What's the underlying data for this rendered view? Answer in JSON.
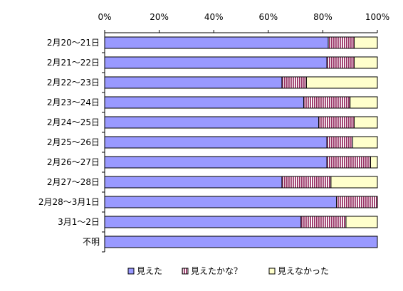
{
  "chart_data": {
    "type": "bar",
    "orientation": "horizontal",
    "stacked": "percent",
    "categories": [
      "2月20～21日",
      "2月21～22日",
      "2月22～23日",
      "2月23～24日",
      "2月24～25日",
      "2月25～26日",
      "2月26～27日",
      "2月27～28日",
      "2月28～3月1日",
      "3月1～2日",
      "不明"
    ],
    "series": [
      {
        "name": "見えた",
        "color": "#9999ff",
        "pattern": "solid",
        "values": [
          82,
          81.5,
          65,
          73,
          78.5,
          81.5,
          81.5,
          65,
          85,
          72,
          100
        ]
      },
      {
        "name": "見えたかな？",
        "color": "#993366",
        "pattern": "vertical-stripes",
        "values": [
          9.5,
          10,
          9,
          17,
          13,
          9.5,
          16,
          18,
          15,
          16.5,
          0
        ]
      },
      {
        "name": "見えなかった",
        "color": "#ffffcc",
        "pattern": "solid",
        "values": [
          8.5,
          8.5,
          26,
          10,
          8.5,
          9,
          2.5,
          17,
          0,
          11.5,
          0
        ]
      }
    ],
    "x_ticks": [
      "0%",
      "20%",
      "40%",
      "60%",
      "80%",
      "100%"
    ],
    "xlim": [
      0,
      100
    ],
    "x_axis_position": "top",
    "grid": false,
    "legend_position": "bottom",
    "title": "",
    "xlabel": "",
    "ylabel": ""
  }
}
